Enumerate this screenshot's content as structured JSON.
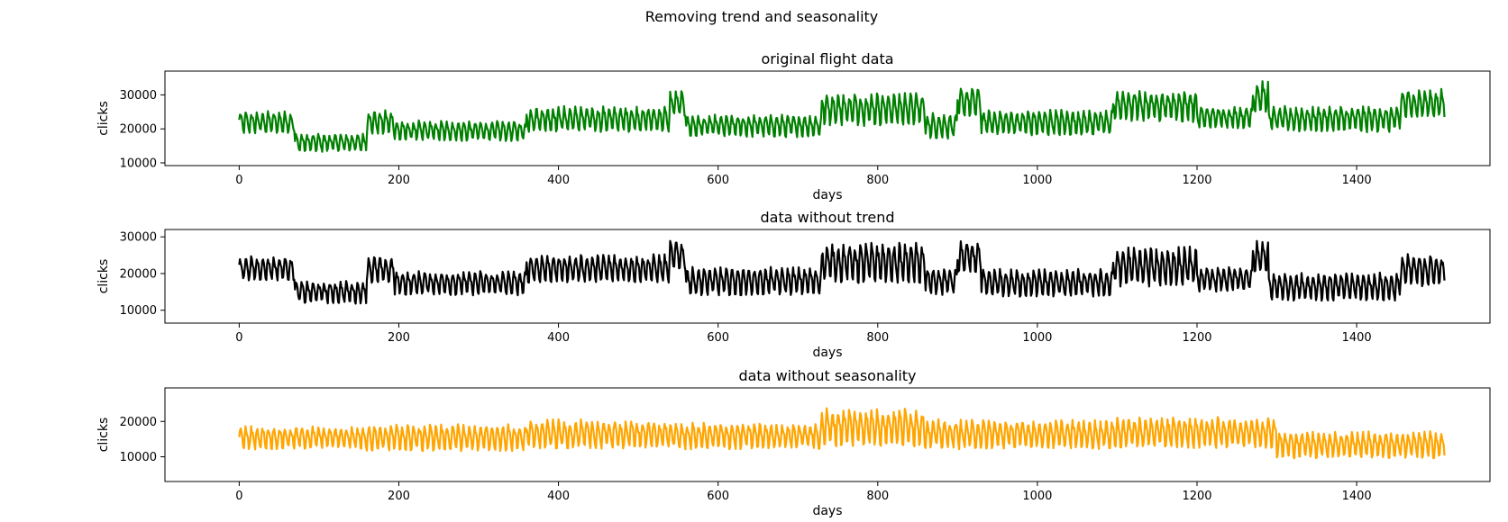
{
  "figure": {
    "suptitle": "Removing trend and seasonality"
  },
  "chart_data": [
    {
      "type": "line",
      "title": "original flight data",
      "xlabel": "days",
      "ylabel": "clicks",
      "xlim": [
        -93,
        1567
      ],
      "ylim": [
        9200,
        37000
      ],
      "xticks": [
        0,
        200,
        400,
        600,
        800,
        1000,
        1200,
        1400
      ],
      "yticks": [
        10000,
        20000,
        30000
      ],
      "grid": false,
      "color": "#008000",
      "x_range": [
        0,
        1510
      ],
      "segments": [
        {
          "x": [
            0,
            70
          ],
          "mean": 22000,
          "amp": 3000
        },
        {
          "x": [
            70,
            160
          ],
          "mean": 16000,
          "amp": 2500
        },
        {
          "x": [
            160,
            195
          ],
          "mean": 22000,
          "amp": 3500
        },
        {
          "x": [
            195,
            360
          ],
          "mean": 19500,
          "amp": 2800
        },
        {
          "x": [
            360,
            540
          ],
          "mean": 23000,
          "amp": 3500
        },
        {
          "x": [
            540,
            560
          ],
          "mean": 27500,
          "amp": 3500
        },
        {
          "x": [
            560,
            730
          ],
          "mean": 21000,
          "amp": 3000
        },
        {
          "x": [
            730,
            860
          ],
          "mean": 26000,
          "amp": 4500
        },
        {
          "x": [
            860,
            900
          ],
          "mean": 21000,
          "amp": 3500
        },
        {
          "x": [
            900,
            930
          ],
          "mean": 28000,
          "amp": 4000
        },
        {
          "x": [
            930,
            1095
          ],
          "mean": 22000,
          "amp": 3500
        },
        {
          "x": [
            1095,
            1200
          ],
          "mean": 27000,
          "amp": 4500
        },
        {
          "x": [
            1200,
            1270
          ],
          "mean": 23500,
          "amp": 3000
        },
        {
          "x": [
            1270,
            1290
          ],
          "mean": 29500,
          "amp": 4500
        },
        {
          "x": [
            1290,
            1455
          ],
          "mean": 23000,
          "amp": 3500
        },
        {
          "x": [
            1455,
            1510
          ],
          "mean": 27500,
          "amp": 4000
        }
      ]
    },
    {
      "type": "line",
      "title": "data without trend",
      "xlabel": "days",
      "ylabel": "clicks",
      "xlim": [
        -93,
        1567
      ],
      "ylim": [
        6500,
        32000
      ],
      "xticks": [
        0,
        200,
        400,
        600,
        800,
        1000,
        1200,
        1400
      ],
      "yticks": [
        10000,
        20000,
        30000
      ],
      "grid": false,
      "color": "#000000",
      "x_range": [
        0,
        1510
      ],
      "segments": [
        {
          "x": [
            0,
            70
          ],
          "mean": 21500,
          "amp": 3000
        },
        {
          "x": [
            70,
            160
          ],
          "mean": 15000,
          "amp": 2800
        },
        {
          "x": [
            160,
            195
          ],
          "mean": 21000,
          "amp": 3800
        },
        {
          "x": [
            195,
            360
          ],
          "mean": 17500,
          "amp": 3000
        },
        {
          "x": [
            360,
            540
          ],
          "mean": 21500,
          "amp": 3500
        },
        {
          "x": [
            540,
            560
          ],
          "mean": 25000,
          "amp": 4000
        },
        {
          "x": [
            560,
            730
          ],
          "mean": 18000,
          "amp": 3500
        },
        {
          "x": [
            730,
            860
          ],
          "mean": 23000,
          "amp": 5000
        },
        {
          "x": [
            860,
            900
          ],
          "mean": 18000,
          "amp": 3500
        },
        {
          "x": [
            900,
            930
          ],
          "mean": 24500,
          "amp": 4000
        },
        {
          "x": [
            930,
            1095
          ],
          "mean": 17500,
          "amp": 3500
        },
        {
          "x": [
            1095,
            1200
          ],
          "mean": 22000,
          "amp": 5000
        },
        {
          "x": [
            1200,
            1270
          ],
          "mean": 18500,
          "amp": 3000
        },
        {
          "x": [
            1270,
            1290
          ],
          "mean": 24500,
          "amp": 4500
        },
        {
          "x": [
            1290,
            1455
          ],
          "mean": 16500,
          "amp": 3500
        },
        {
          "x": [
            1455,
            1510
          ],
          "mean": 21000,
          "amp": 4000
        }
      ]
    },
    {
      "type": "line",
      "title": "data without seasonality",
      "xlabel": "days",
      "ylabel": "clicks",
      "xlim": [
        -93,
        1567
      ],
      "ylim": [
        3000,
        29500
      ],
      "xticks": [
        0,
        200,
        400,
        600,
        800,
        1000,
        1200,
        1400
      ],
      "yticks": [
        10000,
        20000
      ],
      "grid": false,
      "color": "#FFA500",
      "x_range": [
        0,
        1510
      ],
      "segments": [
        {
          "x": [
            0,
            160
          ],
          "mean": 15500,
          "amp": 3000
        },
        {
          "x": [
            160,
            360
          ],
          "mean": 15500,
          "amp": 3500
        },
        {
          "x": [
            360,
            540
          ],
          "mean": 16500,
          "amp": 3800
        },
        {
          "x": [
            540,
            730
          ],
          "mean": 16000,
          "amp": 3500
        },
        {
          "x": [
            730,
            860
          ],
          "mean": 18500,
          "amp": 5000
        },
        {
          "x": [
            860,
            1095
          ],
          "mean": 16500,
          "amp": 3800
        },
        {
          "x": [
            1095,
            1300
          ],
          "mean": 17000,
          "amp": 4000
        },
        {
          "x": [
            1300,
            1510
          ],
          "mean": 13500,
          "amp": 3500
        }
      ]
    }
  ]
}
